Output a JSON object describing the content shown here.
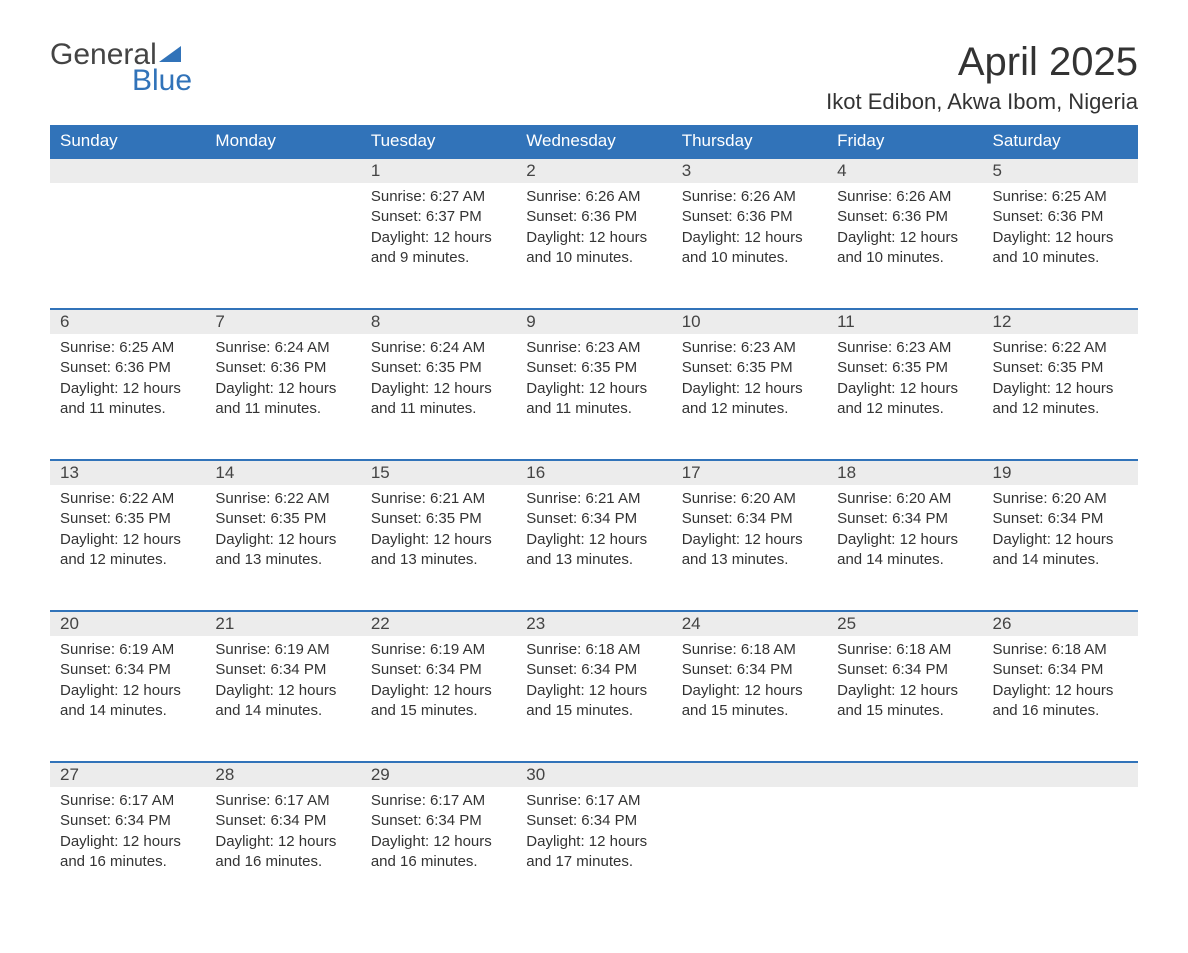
{
  "logo": {
    "word1": "General",
    "word2": "Blue"
  },
  "title": "April 2025",
  "location": "Ikot Edibon, Akwa Ibom, Nigeria",
  "colors": {
    "header_bg": "#3173b9",
    "header_fg": "#ffffff",
    "daynum_bg": "#ececec",
    "border_top": "#3173b9",
    "text": "#333333",
    "logo_gray": "#444444",
    "logo_blue": "#3173b9",
    "page_bg": "#ffffff"
  },
  "typography": {
    "title_fontsize_pt": 30,
    "location_fontsize_pt": 17,
    "header_fontsize_pt": 13,
    "cell_fontsize_pt": 11,
    "font_family": "Segoe UI"
  },
  "day_headers": [
    "Sunday",
    "Monday",
    "Tuesday",
    "Wednesday",
    "Thursday",
    "Friday",
    "Saturday"
  ],
  "weeks": [
    [
      null,
      null,
      {
        "n": "1",
        "sunrise": "Sunrise: 6:27 AM",
        "sunset": "Sunset: 6:37 PM",
        "daylight": "Daylight: 12 hours and 9 minutes."
      },
      {
        "n": "2",
        "sunrise": "Sunrise: 6:26 AM",
        "sunset": "Sunset: 6:36 PM",
        "daylight": "Daylight: 12 hours and 10 minutes."
      },
      {
        "n": "3",
        "sunrise": "Sunrise: 6:26 AM",
        "sunset": "Sunset: 6:36 PM",
        "daylight": "Daylight: 12 hours and 10 minutes."
      },
      {
        "n": "4",
        "sunrise": "Sunrise: 6:26 AM",
        "sunset": "Sunset: 6:36 PM",
        "daylight": "Daylight: 12 hours and 10 minutes."
      },
      {
        "n": "5",
        "sunrise": "Sunrise: 6:25 AM",
        "sunset": "Sunset: 6:36 PM",
        "daylight": "Daylight: 12 hours and 10 minutes."
      }
    ],
    [
      {
        "n": "6",
        "sunrise": "Sunrise: 6:25 AM",
        "sunset": "Sunset: 6:36 PM",
        "daylight": "Daylight: 12 hours and 11 minutes."
      },
      {
        "n": "7",
        "sunrise": "Sunrise: 6:24 AM",
        "sunset": "Sunset: 6:36 PM",
        "daylight": "Daylight: 12 hours and 11 minutes."
      },
      {
        "n": "8",
        "sunrise": "Sunrise: 6:24 AM",
        "sunset": "Sunset: 6:35 PM",
        "daylight": "Daylight: 12 hours and 11 minutes."
      },
      {
        "n": "9",
        "sunrise": "Sunrise: 6:23 AM",
        "sunset": "Sunset: 6:35 PM",
        "daylight": "Daylight: 12 hours and 11 minutes."
      },
      {
        "n": "10",
        "sunrise": "Sunrise: 6:23 AM",
        "sunset": "Sunset: 6:35 PM",
        "daylight": "Daylight: 12 hours and 12 minutes."
      },
      {
        "n": "11",
        "sunrise": "Sunrise: 6:23 AM",
        "sunset": "Sunset: 6:35 PM",
        "daylight": "Daylight: 12 hours and 12 minutes."
      },
      {
        "n": "12",
        "sunrise": "Sunrise: 6:22 AM",
        "sunset": "Sunset: 6:35 PM",
        "daylight": "Daylight: 12 hours and 12 minutes."
      }
    ],
    [
      {
        "n": "13",
        "sunrise": "Sunrise: 6:22 AM",
        "sunset": "Sunset: 6:35 PM",
        "daylight": "Daylight: 12 hours and 12 minutes."
      },
      {
        "n": "14",
        "sunrise": "Sunrise: 6:22 AM",
        "sunset": "Sunset: 6:35 PM",
        "daylight": "Daylight: 12 hours and 13 minutes."
      },
      {
        "n": "15",
        "sunrise": "Sunrise: 6:21 AM",
        "sunset": "Sunset: 6:35 PM",
        "daylight": "Daylight: 12 hours and 13 minutes."
      },
      {
        "n": "16",
        "sunrise": "Sunrise: 6:21 AM",
        "sunset": "Sunset: 6:34 PM",
        "daylight": "Daylight: 12 hours and 13 minutes."
      },
      {
        "n": "17",
        "sunrise": "Sunrise: 6:20 AM",
        "sunset": "Sunset: 6:34 PM",
        "daylight": "Daylight: 12 hours and 13 minutes."
      },
      {
        "n": "18",
        "sunrise": "Sunrise: 6:20 AM",
        "sunset": "Sunset: 6:34 PM",
        "daylight": "Daylight: 12 hours and 14 minutes."
      },
      {
        "n": "19",
        "sunrise": "Sunrise: 6:20 AM",
        "sunset": "Sunset: 6:34 PM",
        "daylight": "Daylight: 12 hours and 14 minutes."
      }
    ],
    [
      {
        "n": "20",
        "sunrise": "Sunrise: 6:19 AM",
        "sunset": "Sunset: 6:34 PM",
        "daylight": "Daylight: 12 hours and 14 minutes."
      },
      {
        "n": "21",
        "sunrise": "Sunrise: 6:19 AM",
        "sunset": "Sunset: 6:34 PM",
        "daylight": "Daylight: 12 hours and 14 minutes."
      },
      {
        "n": "22",
        "sunrise": "Sunrise: 6:19 AM",
        "sunset": "Sunset: 6:34 PM",
        "daylight": "Daylight: 12 hours and 15 minutes."
      },
      {
        "n": "23",
        "sunrise": "Sunrise: 6:18 AM",
        "sunset": "Sunset: 6:34 PM",
        "daylight": "Daylight: 12 hours and 15 minutes."
      },
      {
        "n": "24",
        "sunrise": "Sunrise: 6:18 AM",
        "sunset": "Sunset: 6:34 PM",
        "daylight": "Daylight: 12 hours and 15 minutes."
      },
      {
        "n": "25",
        "sunrise": "Sunrise: 6:18 AM",
        "sunset": "Sunset: 6:34 PM",
        "daylight": "Daylight: 12 hours and 15 minutes."
      },
      {
        "n": "26",
        "sunrise": "Sunrise: 6:18 AM",
        "sunset": "Sunset: 6:34 PM",
        "daylight": "Daylight: 12 hours and 16 minutes."
      }
    ],
    [
      {
        "n": "27",
        "sunrise": "Sunrise: 6:17 AM",
        "sunset": "Sunset: 6:34 PM",
        "daylight": "Daylight: 12 hours and 16 minutes."
      },
      {
        "n": "28",
        "sunrise": "Sunrise: 6:17 AM",
        "sunset": "Sunset: 6:34 PM",
        "daylight": "Daylight: 12 hours and 16 minutes."
      },
      {
        "n": "29",
        "sunrise": "Sunrise: 6:17 AM",
        "sunset": "Sunset: 6:34 PM",
        "daylight": "Daylight: 12 hours and 16 minutes."
      },
      {
        "n": "30",
        "sunrise": "Sunrise: 6:17 AM",
        "sunset": "Sunset: 6:34 PM",
        "daylight": "Daylight: 12 hours and 17 minutes."
      },
      null,
      null,
      null
    ]
  ]
}
